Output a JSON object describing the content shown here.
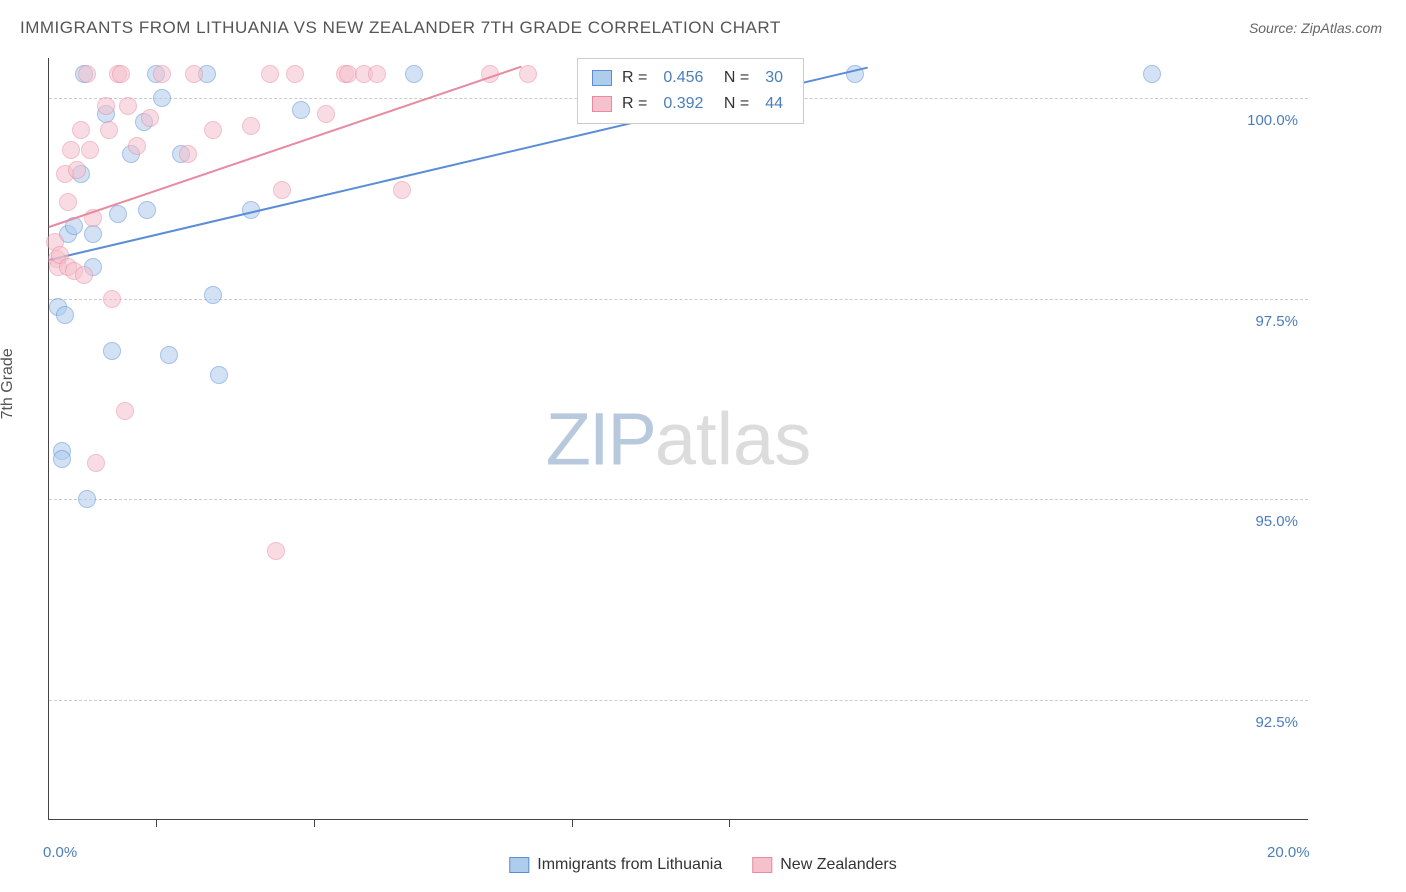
{
  "title": "IMMIGRANTS FROM LITHUANIA VS NEW ZEALANDER 7TH GRADE CORRELATION CHART",
  "source_label": "Source: ZipAtlas.com",
  "ylabel": "7th Grade",
  "watermark": {
    "part1": "ZIP",
    "part2": "atlas"
  },
  "chart": {
    "type": "scatter",
    "xlim": [
      0,
      20
    ],
    "ylim": [
      91,
      100.5
    ],
    "background_color": "#ffffff",
    "grid_color": "#cccccc",
    "axis_color": "#444444",
    "tick_color": "#4a7ebb",
    "tick_fontsize": 15,
    "title_fontsize": 17,
    "yticks": [
      {
        "v": 100.0,
        "label": "100.0%"
      },
      {
        "v": 97.5,
        "label": "97.5%"
      },
      {
        "v": 95.0,
        "label": "95.0%"
      },
      {
        "v": 92.5,
        "label": "92.5%"
      }
    ],
    "xticks_major": [
      0,
      20
    ],
    "xticks_minor": [
      1.7,
      4.2,
      8.3,
      10.8
    ],
    "xtick_labels": {
      "0": "0.0%",
      "20": "20.0%"
    },
    "point_radius": 9,
    "trend_width": 2,
    "series": [
      {
        "name": "Immigrants from Lithuania",
        "fill": "#aeccec",
        "stroke": "#5b8dd6",
        "fill_opacity": 0.55,
        "R": "0.456",
        "N": "30",
        "trend": {
          "x1": 0,
          "y1": 98.0,
          "x2": 13.0,
          "y2": 100.4
        },
        "points": [
          [
            0.15,
            97.4
          ],
          [
            0.25,
            97.3
          ],
          [
            0.2,
            95.6
          ],
          [
            0.2,
            95.5
          ],
          [
            0.3,
            98.3
          ],
          [
            0.4,
            98.4
          ],
          [
            0.5,
            99.05
          ],
          [
            0.55,
            100.3
          ],
          [
            0.6,
            95.0
          ],
          [
            0.7,
            97.9
          ],
          [
            0.7,
            98.3
          ],
          [
            0.9,
            99.8
          ],
          [
            1.0,
            96.85
          ],
          [
            1.1,
            98.55
          ],
          [
            1.3,
            99.3
          ],
          [
            1.5,
            99.7
          ],
          [
            1.55,
            98.6
          ],
          [
            1.7,
            100.3
          ],
          [
            1.8,
            100.0
          ],
          [
            1.9,
            96.8
          ],
          [
            2.1,
            99.3
          ],
          [
            2.5,
            100.3
          ],
          [
            2.6,
            97.55
          ],
          [
            2.7,
            96.55
          ],
          [
            3.2,
            98.6
          ],
          [
            4.0,
            99.85
          ],
          [
            5.8,
            100.3
          ],
          [
            11.7,
            100.3
          ],
          [
            12.8,
            100.3
          ],
          [
            17.5,
            100.3
          ]
        ]
      },
      {
        "name": "New Zealanders",
        "fill": "#f5c1cd",
        "stroke": "#e88aa0",
        "fill_opacity": 0.55,
        "R": "0.392",
        "N": "44",
        "trend": {
          "x1": 0,
          "y1": 98.4,
          "x2": 7.5,
          "y2": 100.4
        },
        "points": [
          [
            0.1,
            98.2
          ],
          [
            0.12,
            98.0
          ],
          [
            0.15,
            97.9
          ],
          [
            0.18,
            98.05
          ],
          [
            0.25,
            99.05
          ],
          [
            0.3,
            98.7
          ],
          [
            0.3,
            97.9
          ],
          [
            0.35,
            99.35
          ],
          [
            0.4,
            97.85
          ],
          [
            0.45,
            99.1
          ],
          [
            0.5,
            99.6
          ],
          [
            0.55,
            97.8
          ],
          [
            0.6,
            100.3
          ],
          [
            0.65,
            99.35
          ],
          [
            0.7,
            98.5
          ],
          [
            0.75,
            95.45
          ],
          [
            0.9,
            99.9
          ],
          [
            0.95,
            99.6
          ],
          [
            1.0,
            97.5
          ],
          [
            1.1,
            100.3
          ],
          [
            1.15,
            100.3
          ],
          [
            1.2,
            96.1
          ],
          [
            1.25,
            99.9
          ],
          [
            1.4,
            99.4
          ],
          [
            1.6,
            99.75
          ],
          [
            1.8,
            100.3
          ],
          [
            2.2,
            99.3
          ],
          [
            2.3,
            100.3
          ],
          [
            2.6,
            99.6
          ],
          [
            3.2,
            99.65
          ],
          [
            3.5,
            100.3
          ],
          [
            3.6,
            94.35
          ],
          [
            3.7,
            98.85
          ],
          [
            3.9,
            100.3
          ],
          [
            4.4,
            99.8
          ],
          [
            4.7,
            100.3
          ],
          [
            4.75,
            100.3
          ],
          [
            5.0,
            100.3
          ],
          [
            5.2,
            100.3
          ],
          [
            5.6,
            98.85
          ],
          [
            7.0,
            100.3
          ],
          [
            7.6,
            100.3
          ],
          [
            11.1,
            100.3
          ],
          [
            11.5,
            100.3
          ]
        ]
      }
    ]
  },
  "bottom_legend": [
    {
      "label": "Immigrants from Lithuania",
      "fill": "#aeccec",
      "stroke": "#5b8dd6"
    },
    {
      "label": "New Zealanders",
      "fill": "#f5c1cd",
      "stroke": "#e88aa0"
    }
  ]
}
